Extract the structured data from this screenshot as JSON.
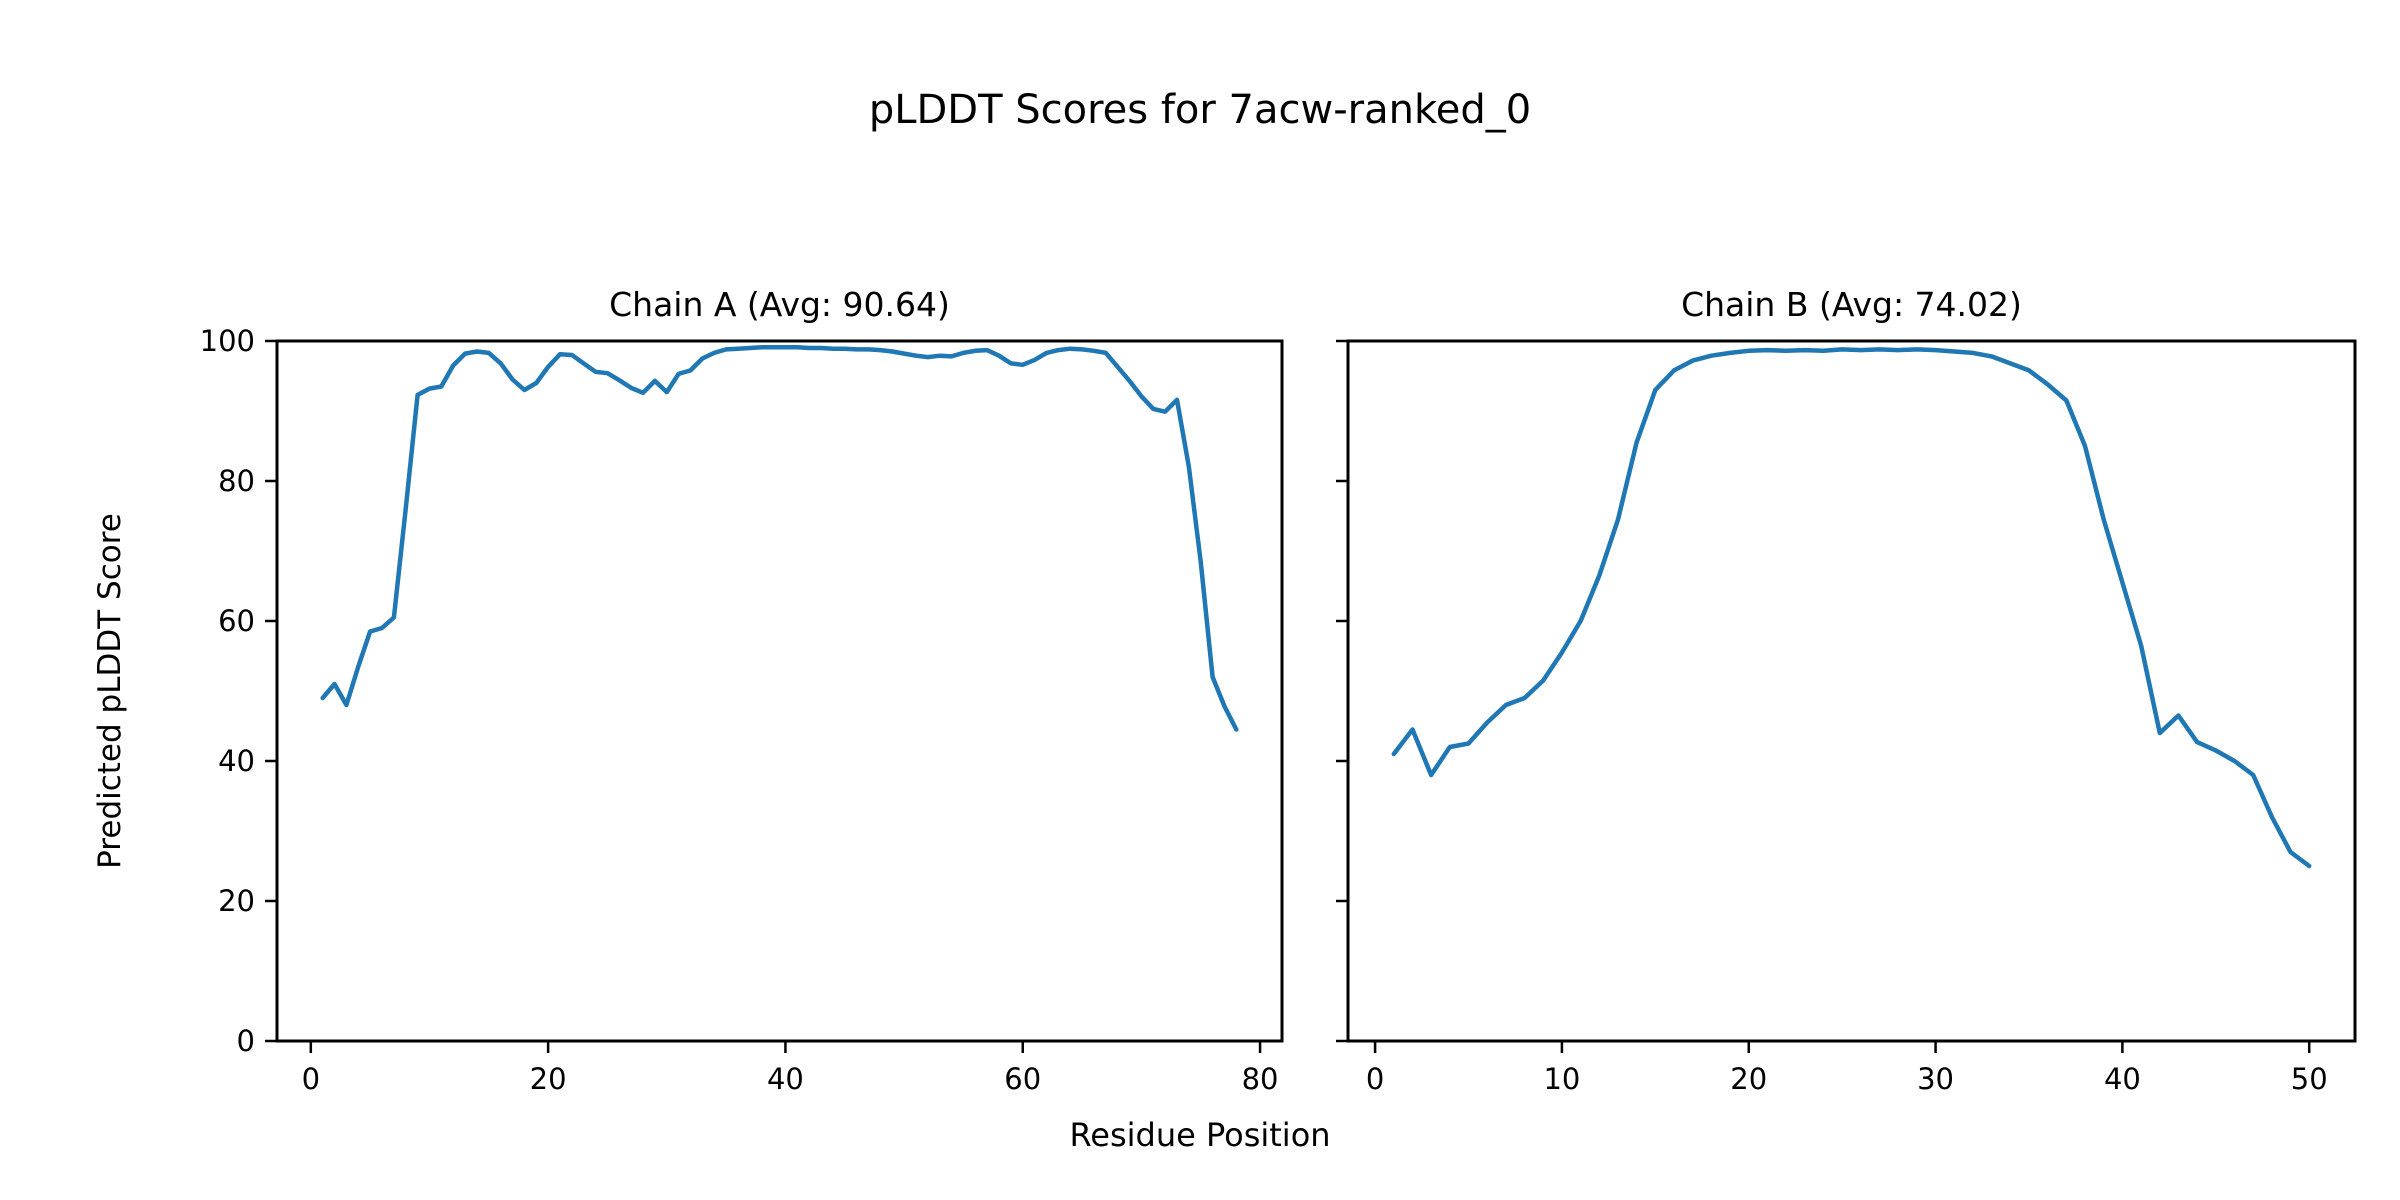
{
  "figure": {
    "suptitle": "pLDDT Scores for 7acw-ranked_0",
    "xlabel": "Residue Position",
    "ylabel": "Predicted pLDDT Score",
    "background_color": "#ffffff",
    "text_color": "#000000",
    "spine_color": "#000000"
  },
  "chart_data": [
    {
      "type": "line",
      "title": "Chain A (Avg: 90.64)",
      "chain": "A",
      "avg_plddt": 90.64,
      "x_start": 1,
      "values": [
        49,
        51,
        48,
        53.5,
        58.5,
        59,
        60.5,
        76,
        92.3,
        93.2,
        93.5,
        96.5,
        98.2,
        98.5,
        98.3,
        96.8,
        94.5,
        93,
        94,
        96.3,
        98.1,
        98,
        96.8,
        95.6,
        95.4,
        94.4,
        93.3,
        92.6,
        94.3,
        92.7,
        95.3,
        95.8,
        97.5,
        98.3,
        98.8,
        98.9,
        99,
        99.1,
        99.1,
        99.1,
        99.1,
        99,
        99,
        98.9,
        98.9,
        98.8,
        98.8,
        98.7,
        98.5,
        98.2,
        97.9,
        97.7,
        97.9,
        97.8,
        98.3,
        98.6,
        98.7,
        97.9,
        96.8,
        96.6,
        97.3,
        98.3,
        98.7,
        98.9,
        98.8,
        98.6,
        98.3,
        96.3,
        94.3,
        92.1,
        90.3,
        89.9,
        91.6,
        82,
        68.5,
        52,
        47.8,
        44.5
      ],
      "xlim": [
        -2.85,
        81.85
      ],
      "ylim": [
        0,
        100
      ],
      "xticks": [
        0,
        20,
        40,
        60,
        80
      ],
      "yticks": [
        0,
        20,
        40,
        60,
        80,
        100
      ],
      "show_ytick_labels": true,
      "line_color": "#1f77b4",
      "grid": false,
      "legend": "none"
    },
    {
      "type": "line",
      "title": "Chain B (Avg: 74.02)",
      "chain": "B",
      "avg_plddt": 74.02,
      "x_start": 1,
      "values": [
        41,
        44.5,
        38,
        42,
        42.5,
        45.5,
        48,
        49,
        51.5,
        55.5,
        60,
        66.5,
        74.5,
        85.5,
        93,
        95.8,
        97.2,
        97.9,
        98.3,
        98.6,
        98.7,
        98.6,
        98.7,
        98.6,
        98.8,
        98.7,
        98.8,
        98.7,
        98.8,
        98.7,
        98.5,
        98.3,
        97.8,
        96.8,
        95.8,
        93.8,
        91.5,
        85,
        74.5,
        65.5,
        56.5,
        44,
        46.5,
        42.7,
        41.5,
        40,
        38,
        32,
        27,
        25
      ],
      "xlim": [
        -1.45,
        52.45
      ],
      "ylim": [
        0,
        100
      ],
      "xticks": [
        0,
        10,
        20,
        30,
        40,
        50
      ],
      "yticks": [
        0,
        20,
        40,
        60,
        80,
        100
      ],
      "show_ytick_labels": false,
      "line_color": "#1f77b4",
      "grid": false,
      "legend": "none"
    }
  ]
}
